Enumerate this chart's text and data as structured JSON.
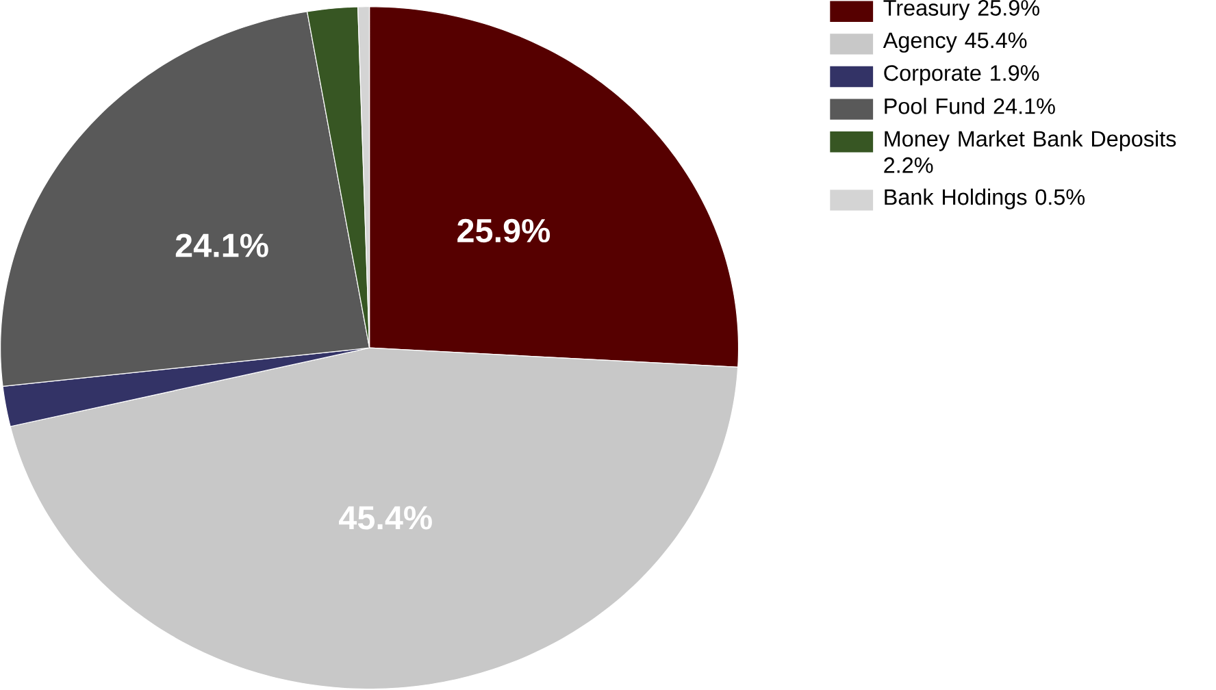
{
  "chart_data": {
    "type": "pie",
    "categories": [
      "Treasury 25.9%",
      "Agency 45.4%",
      "Corporate 1.9%",
      "Pool Fund 24.1%",
      "Money Market Bank Deposits 2.2%",
      "Bank Holdings 0.5%"
    ],
    "values": [
      25.9,
      45.4,
      1.9,
      24.1,
      2.2,
      0.5
    ],
    "colors": [
      "#560000",
      "#c8c8c8",
      "#333366",
      "#595959",
      "#375623",
      "#d4d4d4"
    ],
    "value_labels": [
      "25.9%",
      "45.4%",
      null,
      "24.1%",
      null,
      null
    ],
    "legend": "top right"
  }
}
